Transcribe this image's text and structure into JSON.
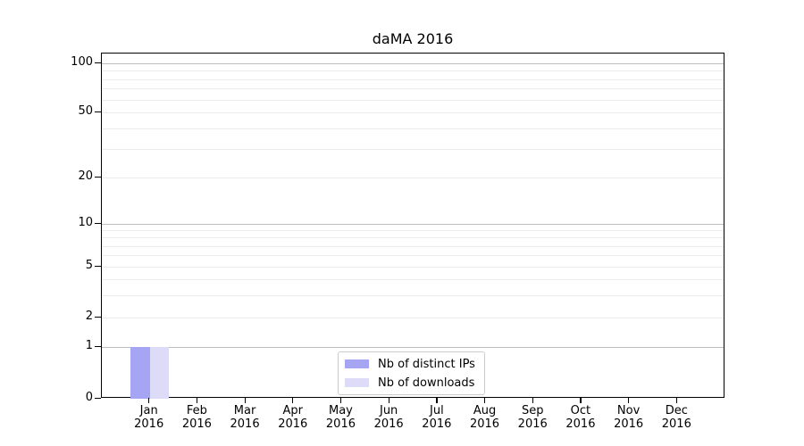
{
  "chart_data": {
    "type": "bar",
    "title": "daMA 2016",
    "categories": [
      "Jan",
      "Feb",
      "Mar",
      "Apr",
      "May",
      "Jun",
      "Jul",
      "Aug",
      "Sep",
      "Oct",
      "Nov",
      "Dec"
    ],
    "year_label": "2016",
    "series": [
      {
        "name": "Nb of distinct IPs",
        "color": "#a5a5f3",
        "values": [
          1,
          0,
          0,
          0,
          0,
          0,
          0,
          0,
          0,
          0,
          0,
          0
        ]
      },
      {
        "name": "Nb of downloads",
        "color": "#dcdcf8",
        "values": [
          1,
          0,
          0,
          0,
          0,
          0,
          0,
          0,
          0,
          0,
          0,
          0
        ]
      }
    ],
    "xlabel": "",
    "ylabel": "",
    "yaxis": {
      "scale": "log-like",
      "ticks": [
        0,
        1,
        2,
        5,
        10,
        20,
        50,
        100
      ],
      "range": [
        0,
        115
      ],
      "minor_gridlines": [
        3,
        4,
        6,
        7,
        8,
        9,
        30,
        40,
        60,
        70,
        80,
        90
      ]
    },
    "legend": {
      "position": "lower center"
    },
    "grid": true
  },
  "colors": {
    "bar_distinct_ips": "#a5a5f3",
    "bar_downloads": "#dcdcf8",
    "major_gridline": "#bdbdbd",
    "minor_gridline": "#ececec",
    "spine": "#000000",
    "text": "#000000",
    "legend_border": "#cccccc"
  }
}
